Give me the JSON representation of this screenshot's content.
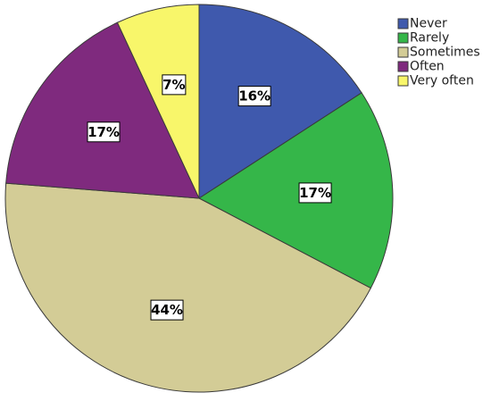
{
  "chart_data": {
    "type": "pie",
    "title": "",
    "categories": [
      "Never",
      "Rarely",
      "Sometimes",
      "Often",
      "Very often"
    ],
    "values": [
      16,
      17,
      44,
      17,
      7
    ],
    "labels": [
      "16%",
      "17%",
      "44%",
      "17%",
      "7%"
    ],
    "colors": [
      "#3f59ad",
      "#35b649",
      "#d3cc96",
      "#7f2a7e",
      "#f8f66a"
    ],
    "start_angle_deg": 0,
    "direction": "clockwise",
    "legend_position": "top-right"
  }
}
